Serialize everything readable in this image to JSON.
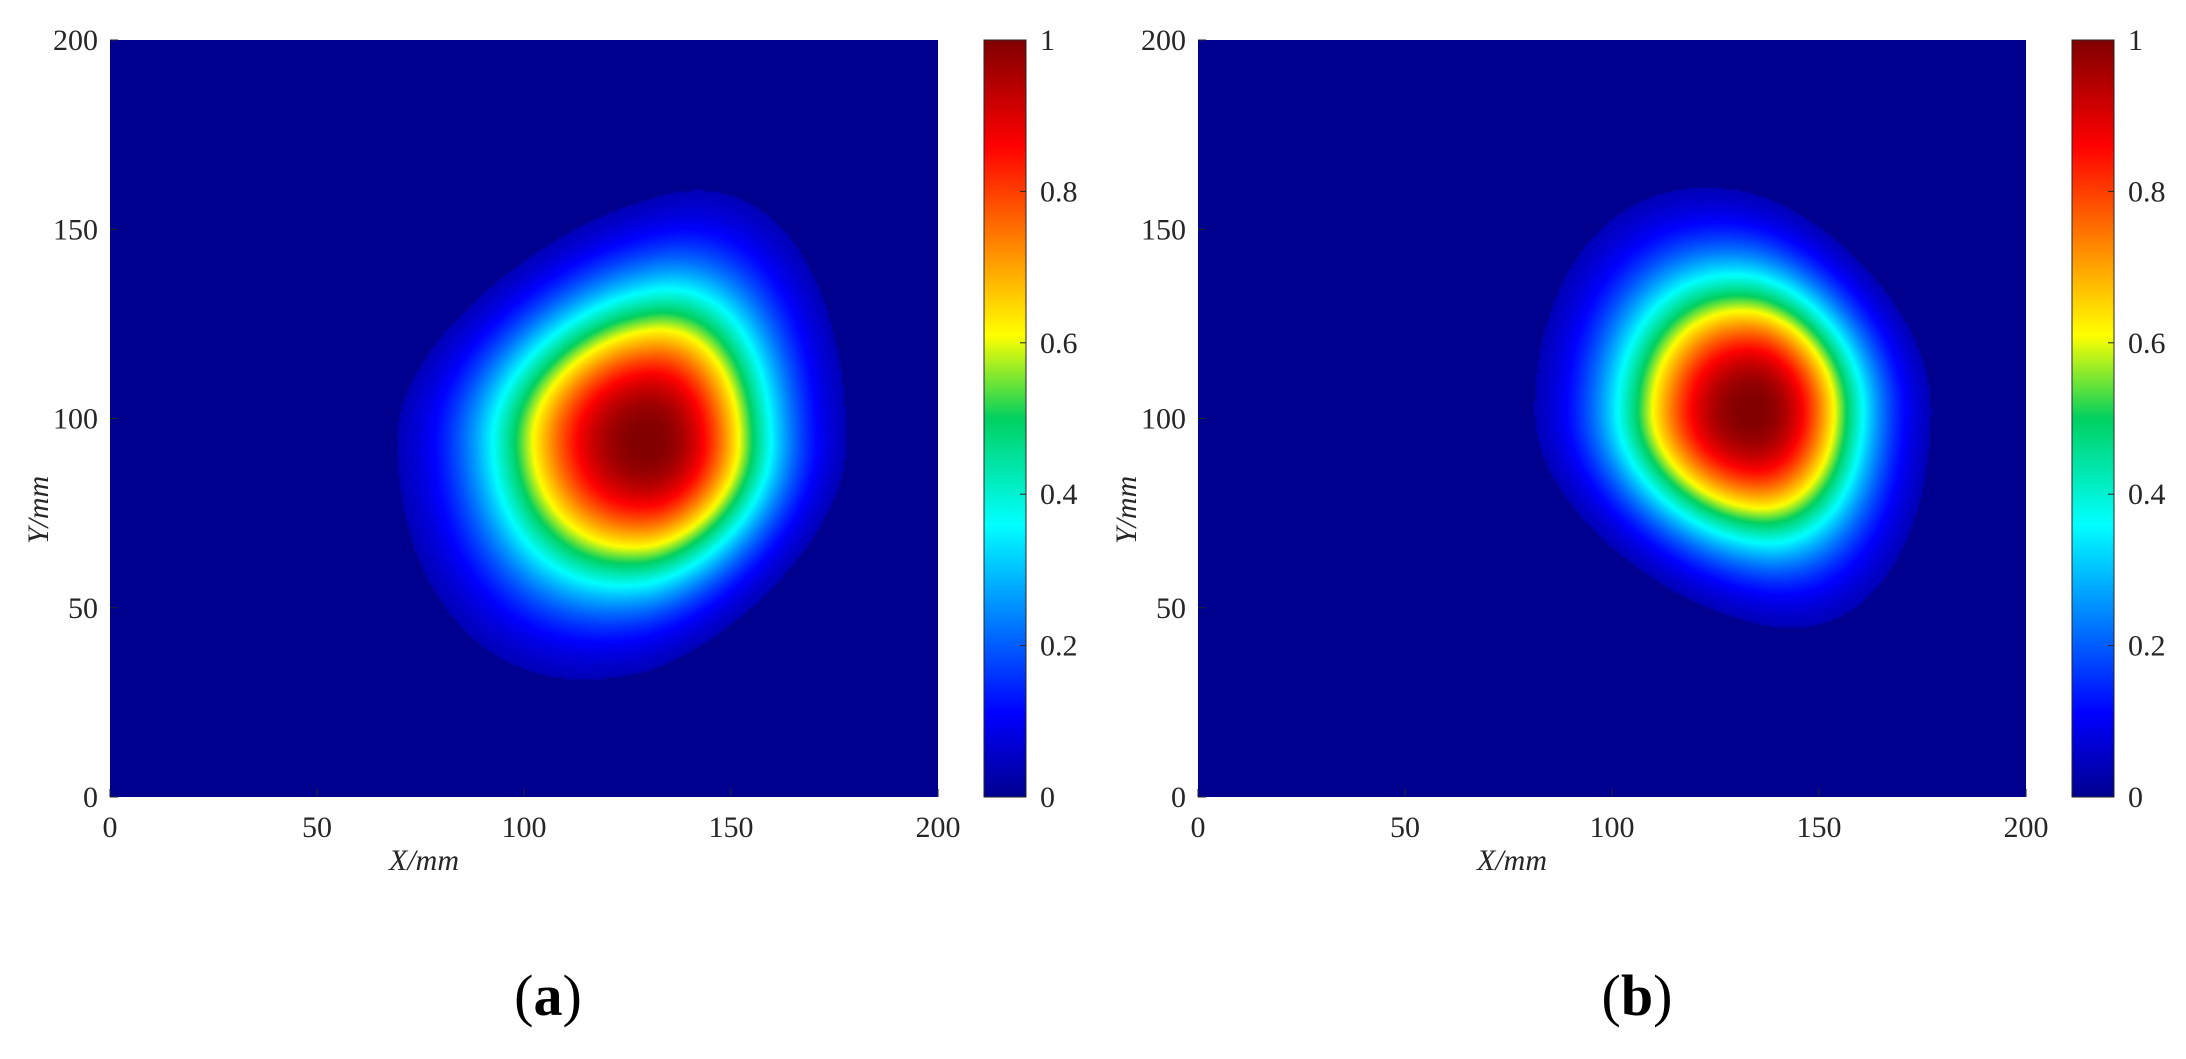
{
  "chart_data": [
    {
      "type": "heatmap",
      "panel_label": "(a)",
      "panel_letter": "a",
      "xlabel": "X/mm",
      "ylabel": "Y/mm",
      "xlim": [
        0,
        200
      ],
      "ylim": [
        0,
        200
      ],
      "xticks": [
        0,
        50,
        100,
        150,
        200
      ],
      "yticks": [
        0,
        50,
        100,
        150,
        200
      ],
      "colorbar": {
        "range": [
          0,
          1
        ],
        "ticks": [
          0,
          0.2,
          0.4,
          0.6,
          0.8,
          1
        ],
        "colormap": "jet"
      },
      "field": {
        "peak_x": 130,
        "peak_y": 94,
        "peak_value": 1.0,
        "spread_x_left": 38,
        "spread_x_right": 30,
        "spread_y_down": 38,
        "spread_y_up": 40,
        "skew": 0.18
      },
      "background_color": "#00008f"
    },
    {
      "type": "heatmap",
      "panel_label": "(b)",
      "panel_letter": "b",
      "xlabel": "X/mm",
      "ylabel": "Y/mm",
      "xlim": [
        0,
        200
      ],
      "ylim": [
        0,
        200
      ],
      "xticks": [
        0,
        50,
        100,
        150,
        200
      ],
      "yticks": [
        0,
        50,
        100,
        150,
        200
      ],
      "colorbar": {
        "range": [
          0,
          1
        ],
        "ticks": [
          0,
          0.2,
          0.4,
          0.6,
          0.8,
          1
        ],
        "colormap": "jet"
      },
      "field": {
        "peak_x": 134,
        "peak_y": 102,
        "peak_value": 1.0,
        "spread_x_left": 33,
        "spread_x_right": 27,
        "spread_y_down": 35,
        "spread_y_up": 36,
        "skew": -0.15
      },
      "background_color": "#00008f"
    }
  ]
}
